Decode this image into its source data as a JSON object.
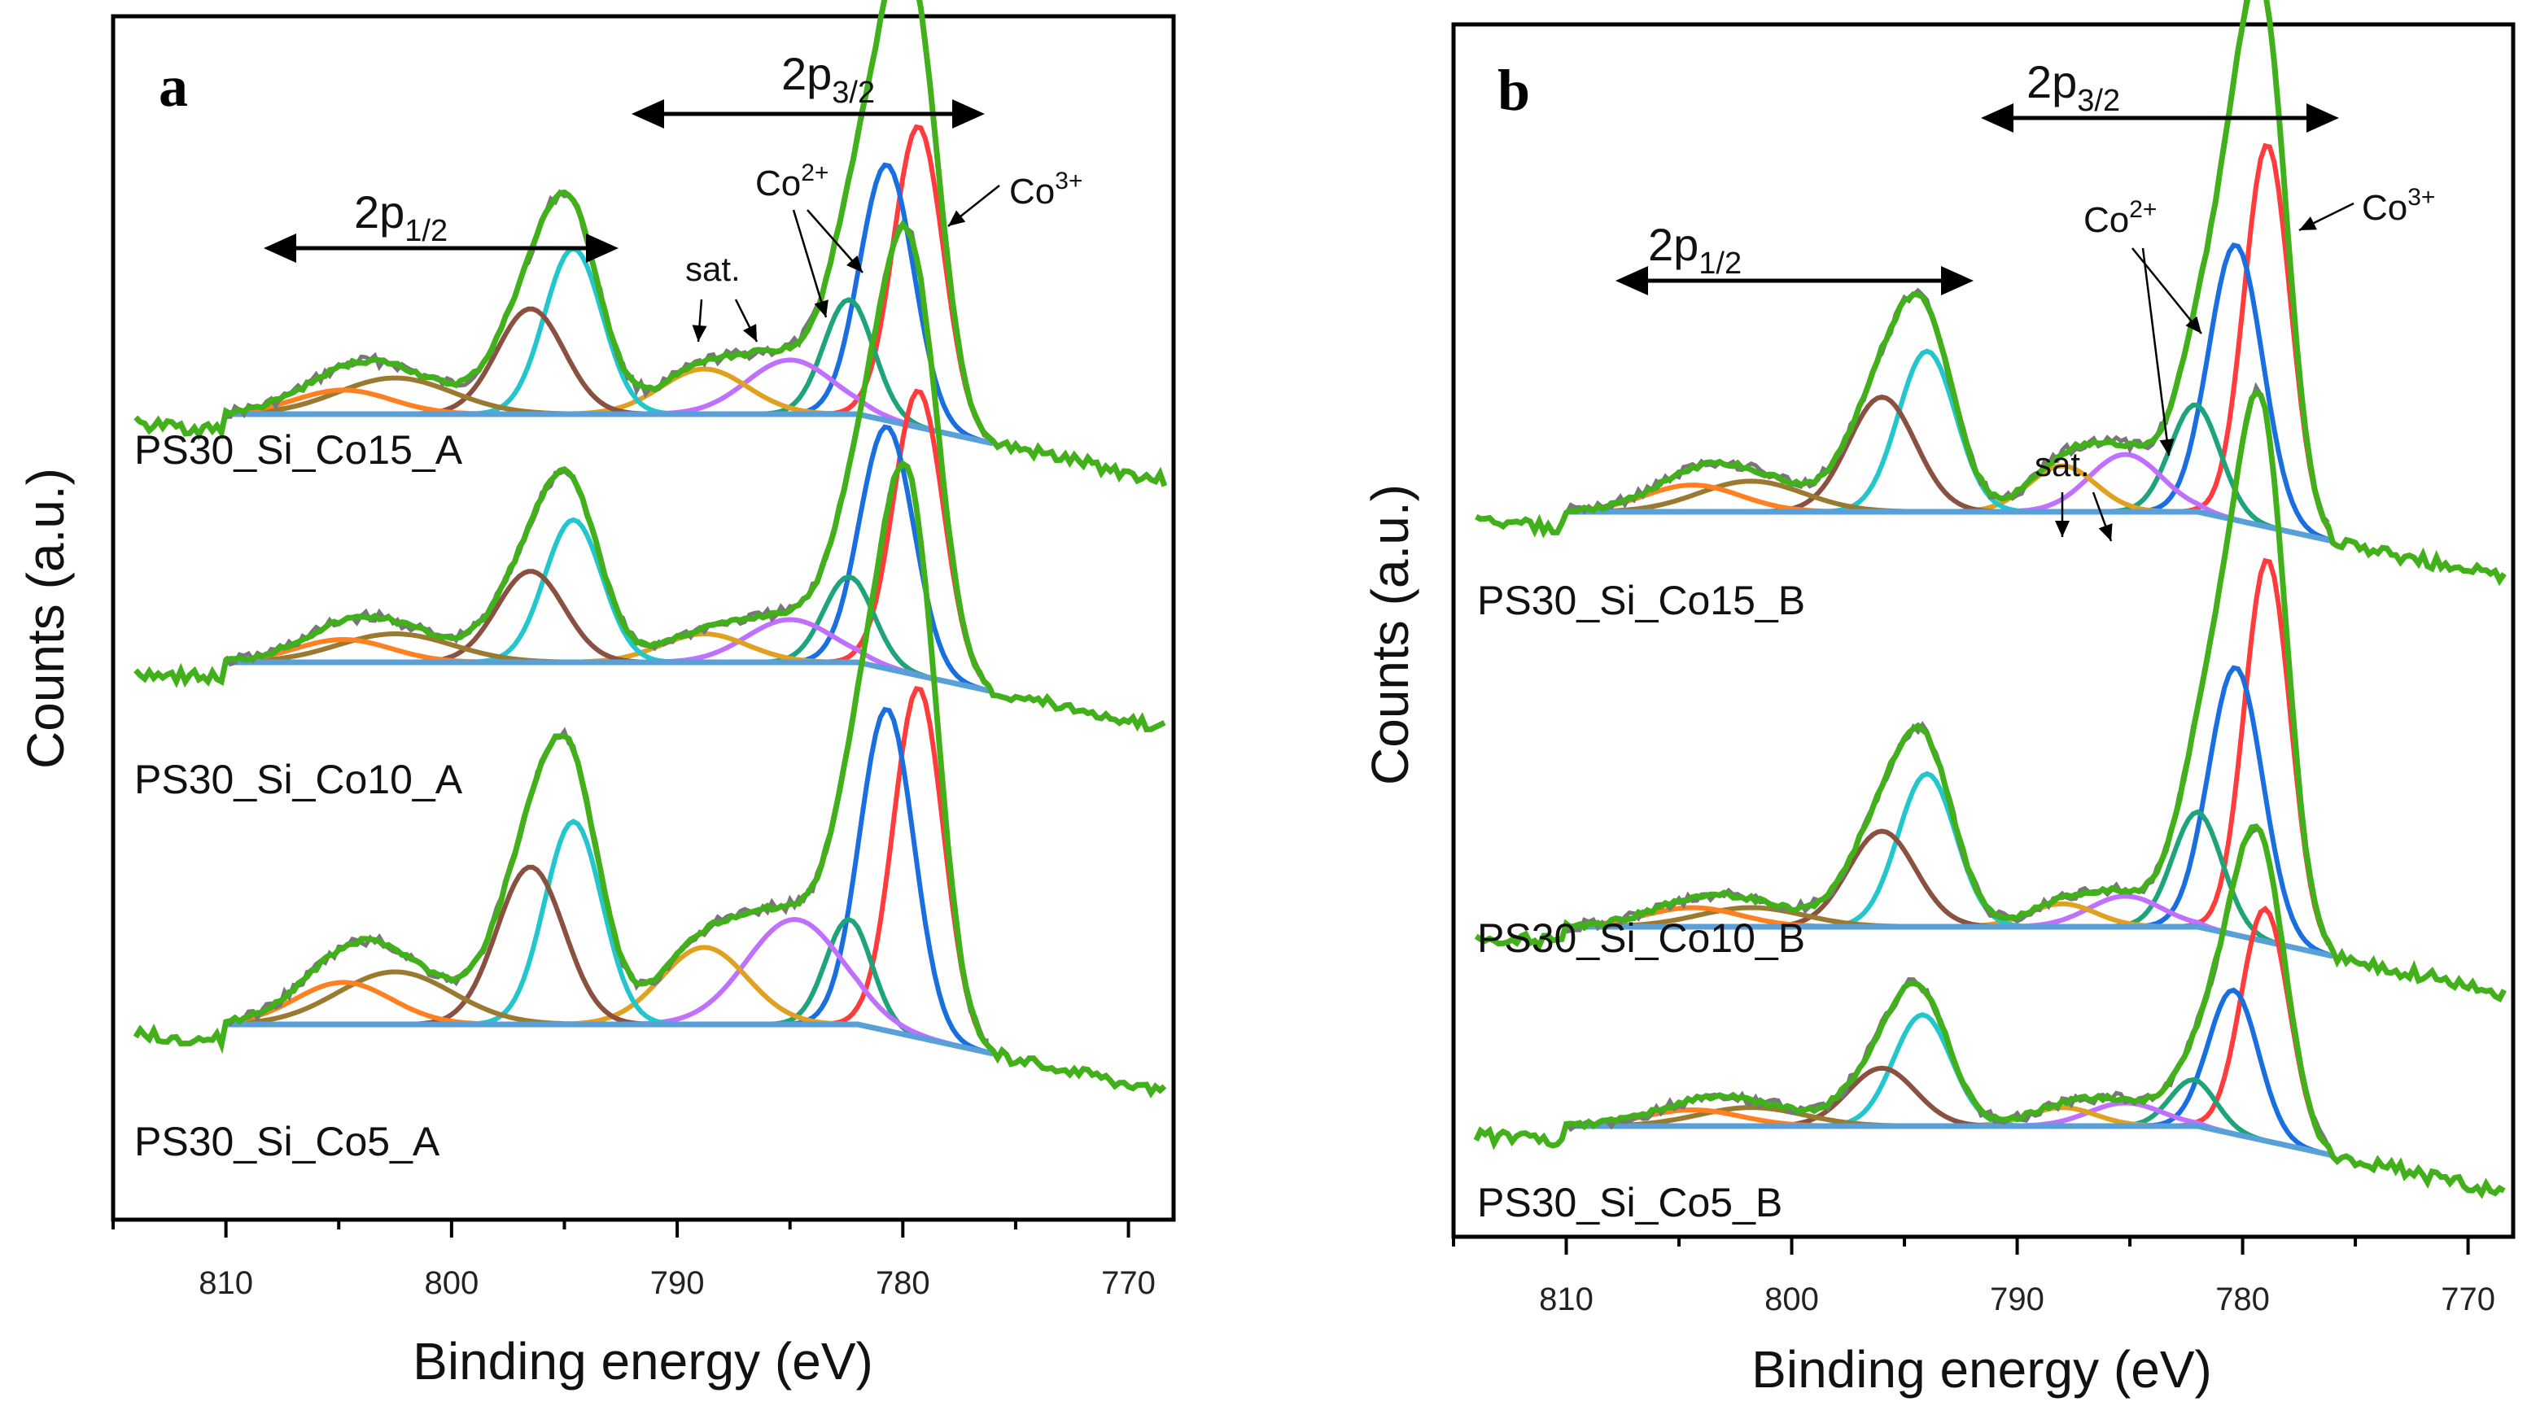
{
  "chart_data": [
    {
      "panel": "a",
      "type": "line",
      "xlabel": "Binding energy (eV)",
      "ylabel": "Counts (a.u.)",
      "xlim": [
        815,
        768
      ],
      "xticks": [
        810,
        800,
        790,
        780,
        770
      ],
      "annotations": {
        "p12": "2p",
        "p12_sub": "1/2",
        "p32": "2p",
        "p32_sub": "3/2",
        "sat": "sat.",
        "co2": "Co",
        "co2_sup": "2+",
        "co3": "Co",
        "co3_sup": "3+"
      },
      "series": [
        {
          "name": "PS30_Si_Co15_A",
          "label": "PS30_Si_Co15_A",
          "peaks": [
            {
              "center": 779.3,
              "amp": 1.0,
              "fwhm": 2.6,
              "color": "#ff3b3b"
            },
            {
              "center": 780.7,
              "amp": 0.85,
              "fwhm": 2.8,
              "color": "#1a6fe0"
            },
            {
              "center": 782.4,
              "amp": 0.38,
              "fwhm": 2.6,
              "color": "#1fa37a"
            },
            {
              "center": 785.0,
              "amp": 0.18,
              "fwhm": 4.5,
              "color": "#c070ff"
            },
            {
              "center": 788.8,
              "amp": 0.15,
              "fwhm": 4.5,
              "color": "#e0a020"
            },
            {
              "center": 794.6,
              "amp": 0.55,
              "fwhm": 3.0,
              "color": "#22c6cc"
            },
            {
              "center": 796.5,
              "amp": 0.35,
              "fwhm": 3.5,
              "color": "#8a5040"
            },
            {
              "center": 802.5,
              "amp": 0.12,
              "fwhm": 6.0,
              "color": "#9a7a30"
            },
            {
              "center": 804.8,
              "amp": 0.08,
              "fwhm": 5.0,
              "color": "#ff8020"
            }
          ]
        },
        {
          "name": "PS30_Si_Co10_A",
          "label": "PS30_Si_Co10_A",
          "peaks": [
            {
              "center": 779.3,
              "amp": 1.0,
              "fwhm": 2.6,
              "color": "#ff3b3b"
            },
            {
              "center": 780.7,
              "amp": 0.85,
              "fwhm": 2.8,
              "color": "#1a6fe0"
            },
            {
              "center": 782.4,
              "amp": 0.3,
              "fwhm": 2.6,
              "color": "#1fa37a"
            },
            {
              "center": 785.0,
              "amp": 0.15,
              "fwhm": 4.5,
              "color": "#c070ff"
            },
            {
              "center": 788.8,
              "amp": 0.1,
              "fwhm": 4.5,
              "color": "#e0a020"
            },
            {
              "center": 794.6,
              "amp": 0.5,
              "fwhm": 3.0,
              "color": "#22c6cc"
            },
            {
              "center": 796.5,
              "amp": 0.32,
              "fwhm": 3.5,
              "color": "#8a5040"
            },
            {
              "center": 802.5,
              "amp": 0.1,
              "fwhm": 6.0,
              "color": "#9a7a30"
            },
            {
              "center": 804.8,
              "amp": 0.08,
              "fwhm": 5.0,
              "color": "#ff8020"
            }
          ]
        },
        {
          "name": "PS30_Si_Co5_A",
          "label": "PS30_Si_Co5_A",
          "peaks": [
            {
              "center": 779.3,
              "amp": 1.0,
              "fwhm": 2.6,
              "color": "#ff3b3b"
            },
            {
              "center": 780.7,
              "amp": 0.92,
              "fwhm": 2.8,
              "color": "#1a6fe0"
            },
            {
              "center": 782.4,
              "amp": 0.3,
              "fwhm": 2.4,
              "color": "#1fa37a"
            },
            {
              "center": 784.8,
              "amp": 0.3,
              "fwhm": 5.0,
              "color": "#c070ff"
            },
            {
              "center": 788.8,
              "amp": 0.22,
              "fwhm": 4.5,
              "color": "#e0a020"
            },
            {
              "center": 794.6,
              "amp": 0.58,
              "fwhm": 3.0,
              "color": "#22c6cc"
            },
            {
              "center": 796.5,
              "amp": 0.45,
              "fwhm": 3.5,
              "color": "#8a5040"
            },
            {
              "center": 802.5,
              "amp": 0.15,
              "fwhm": 6.0,
              "color": "#9a7a30"
            },
            {
              "center": 804.8,
              "amp": 0.12,
              "fwhm": 5.0,
              "color": "#ff8020"
            }
          ]
        }
      ]
    },
    {
      "panel": "b",
      "type": "line",
      "xlabel": "Binding energy (eV)",
      "ylabel": "Counts (a.u.)",
      "xlim": [
        815,
        768
      ],
      "xticks": [
        810,
        800,
        790,
        780,
        770
      ],
      "annotations": {
        "p12": "2p",
        "p12_sub": "1/2",
        "p32": "2p",
        "p32_sub": "3/2",
        "sat": "sat.",
        "co2": "Co",
        "co2_sup": "2+",
        "co3": "Co",
        "co3_sup": "3+"
      },
      "series": [
        {
          "name": "PS30_Si_Co15_B",
          "label": "PS30_Si_Co15_B",
          "peaks": [
            {
              "center": 778.9,
              "amp": 1.0,
              "fwhm": 2.4,
              "color": "#ff3b3b"
            },
            {
              "center": 780.3,
              "amp": 0.72,
              "fwhm": 2.8,
              "color": "#1a6fe0"
            },
            {
              "center": 782.1,
              "amp": 0.28,
              "fwhm": 2.6,
              "color": "#1fa37a"
            },
            {
              "center": 785.2,
              "amp": 0.15,
              "fwhm": 3.8,
              "color": "#c070ff"
            },
            {
              "center": 788.0,
              "amp": 0.12,
              "fwhm": 3.5,
              "color": "#e0a020"
            },
            {
              "center": 794.0,
              "amp": 0.42,
              "fwhm": 3.0,
              "color": "#22c6cc"
            },
            {
              "center": 796.0,
              "amp": 0.3,
              "fwhm": 3.5,
              "color": "#8a5040"
            },
            {
              "center": 801.8,
              "amp": 0.08,
              "fwhm": 5.5,
              "color": "#9a7a30"
            },
            {
              "center": 804.4,
              "amp": 0.07,
              "fwhm": 5.0,
              "color": "#ff8020"
            }
          ]
        },
        {
          "name": "PS30_Si_Co10_B",
          "label": "PS30_Si_Co10_B",
          "peaks": [
            {
              "center": 778.9,
              "amp": 1.0,
              "fwhm": 2.4,
              "color": "#ff3b3b"
            },
            {
              "center": 780.3,
              "amp": 0.7,
              "fwhm": 2.8,
              "color": "#1a6fe0"
            },
            {
              "center": 782.0,
              "amp": 0.3,
              "fwhm": 2.6,
              "color": "#1fa37a"
            },
            {
              "center": 785.2,
              "amp": 0.08,
              "fwhm": 3.8,
              "color": "#c070ff"
            },
            {
              "center": 788.0,
              "amp": 0.06,
              "fwhm": 3.5,
              "color": "#e0a020"
            },
            {
              "center": 794.0,
              "amp": 0.4,
              "fwhm": 3.0,
              "color": "#22c6cc"
            },
            {
              "center": 796.0,
              "amp": 0.25,
              "fwhm": 3.5,
              "color": "#8a5040"
            },
            {
              "center": 801.8,
              "amp": 0.05,
              "fwhm": 5.5,
              "color": "#9a7a30"
            },
            {
              "center": 804.4,
              "amp": 0.05,
              "fwhm": 5.0,
              "color": "#ff8020"
            }
          ]
        },
        {
          "name": "PS30_Si_Co5_B",
          "label": "PS30_Si_Co5_B",
          "peaks": [
            {
              "center": 779.0,
              "amp": 1.0,
              "fwhm": 2.5,
              "color": "#ff3b3b"
            },
            {
              "center": 780.4,
              "amp": 0.62,
              "fwhm": 2.6,
              "color": "#1a6fe0"
            },
            {
              "center": 782.2,
              "amp": 0.2,
              "fwhm": 2.4,
              "color": "#1fa37a"
            },
            {
              "center": 785.2,
              "amp": 0.1,
              "fwhm": 3.8,
              "color": "#c070ff"
            },
            {
              "center": 788.0,
              "amp": 0.08,
              "fwhm": 3.5,
              "color": "#e0a020"
            },
            {
              "center": 794.2,
              "amp": 0.48,
              "fwhm": 3.0,
              "color": "#22c6cc"
            },
            {
              "center": 796.0,
              "amp": 0.25,
              "fwhm": 3.5,
              "color": "#8a5040"
            },
            {
              "center": 801.8,
              "amp": 0.08,
              "fwhm": 5.5,
              "color": "#9a7a30"
            },
            {
              "center": 804.4,
              "amp": 0.07,
              "fwhm": 5.0,
              "color": "#ff8020"
            }
          ]
        }
      ]
    }
  ],
  "colors": {
    "raw": "#777777",
    "envelope": "#42b01a",
    "background": "#5aa0d8"
  }
}
